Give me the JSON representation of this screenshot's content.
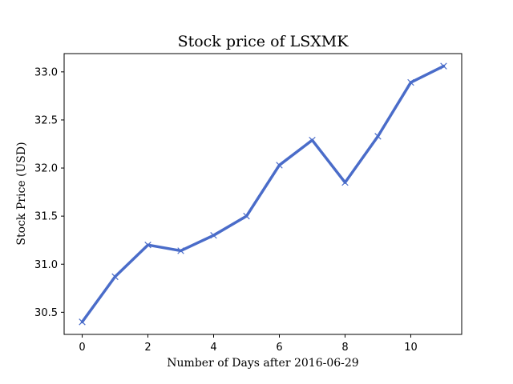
{
  "chart_data": {
    "type": "line",
    "title": "Stock price of LSXMK",
    "xlabel": "Number of Days after 2016-06-29",
    "ylabel": "Stock Price (USD)",
    "xlim": [
      -0.55,
      11.55
    ],
    "ylim": [
      30.27,
      33.19
    ],
    "x_ticks": [
      0,
      2,
      4,
      6,
      8,
      10
    ],
    "x_tick_labels": [
      "0",
      "2",
      "4",
      "6",
      "8",
      "10"
    ],
    "y_ticks": [
      30.5,
      31.0,
      31.5,
      32.0,
      32.5,
      33.0
    ],
    "y_tick_labels": [
      "30.5",
      "31.0",
      "31.5",
      "32.0",
      "32.5",
      "33.0"
    ],
    "grid": false,
    "legend": "none",
    "series": [
      {
        "color": "#4a6cc9",
        "marker": "x",
        "x": [
          0,
          1,
          2,
          3,
          4,
          5,
          6,
          7,
          8,
          9,
          10,
          11
        ],
        "values": [
          30.4,
          30.87,
          31.2,
          31.14,
          31.3,
          31.5,
          32.03,
          32.29,
          31.85,
          32.33,
          32.89,
          33.06
        ]
      }
    ]
  }
}
